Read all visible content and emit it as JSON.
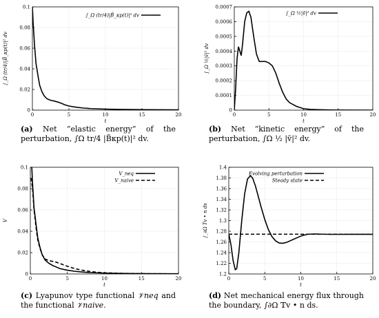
{
  "chart_data": [
    {
      "id": "a",
      "type": "line",
      "xlabel": "t",
      "ylabel": "∫_Ω (tr/4)|B̃_κp(t)|² dv",
      "xlim": [
        0,
        20
      ],
      "ylim": [
        0,
        0.1
      ],
      "xticks": [
        "0",
        "5",
        "10",
        "15",
        "20"
      ],
      "xtick_values": [
        0,
        5,
        10,
        15,
        20
      ],
      "yticks": [
        "0",
        "0.02",
        "0.04",
        "0.06",
        "0.08",
        "0.1"
      ],
      "ytick_values": [
        0,
        0.02,
        0.04,
        0.06,
        0.08,
        0.1
      ],
      "grid": true,
      "legend_position": "top-right",
      "series": [
        {
          "name": "∫_Ω (tr/4)|B̃_κp(t)|² dv",
          "style": "solid",
          "x": [
            0,
            0.1,
            0.3,
            0.5,
            0.8,
            1.0,
            1.3,
            1.6,
            2.0,
            2.5,
            3.0,
            3.5,
            4.0,
            4.5,
            5.0,
            6.0,
            7.0,
            8.0,
            10.0,
            12.0,
            15.0,
            20.0
          ],
          "y": [
            0.1,
            0.085,
            0.062,
            0.045,
            0.032,
            0.024,
            0.018,
            0.014,
            0.011,
            0.0095,
            0.0088,
            0.0078,
            0.0065,
            0.005,
            0.004,
            0.0028,
            0.002,
            0.0015,
            0.001,
            0.0007,
            0.0005,
            0.0003
          ]
        }
      ]
    },
    {
      "id": "b",
      "type": "line",
      "xlabel": "t",
      "ylabel": "∫_Ω ½|v̄|² dv",
      "xlim": [
        0,
        20
      ],
      "ylim": [
        0,
        0.0007
      ],
      "xticks": [
        "0",
        "5",
        "10",
        "15",
        "20"
      ],
      "xtick_values": [
        0,
        5,
        10,
        15,
        20
      ],
      "yticks": [
        "0",
        "0.0001",
        "0.0002",
        "0.0003",
        "0.0004",
        "0.0005",
        "0.0006",
        "0.0007"
      ],
      "ytick_values": [
        0,
        0.0001,
        0.0002,
        0.0003,
        0.0004,
        0.0005,
        0.0006,
        0.0007
      ],
      "grid": true,
      "legend_position": "top-right",
      "series": [
        {
          "name": "∫_Ω ½|v̄|² dv",
          "style": "solid",
          "x": [
            0,
            0.2,
            0.4,
            0.6,
            0.8,
            1.0,
            1.2,
            1.5,
            1.8,
            2.1,
            2.4,
            2.8,
            3.2,
            3.6,
            4.0,
            4.5,
            5.0,
            5.5,
            6.0,
            6.5,
            7.0,
            7.5,
            8.0,
            9.0,
            10.0,
            11.0,
            12.0,
            14.0,
            16.0,
            20.0
          ],
          "y": [
            0,
            0.00015,
            0.00035,
            0.00043,
            0.0004,
            0.00037,
            0.00045,
            0.0006,
            0.00066,
            0.00067,
            0.00063,
            0.0005,
            0.00038,
            0.00033,
            0.00033,
            0.00033,
            0.00032,
            0.0003,
            0.00025,
            0.00018,
            0.00012,
            7.5e-05,
            5e-05,
            2.5e-05,
            1e-05,
            5e-06,
            3e-06,
            1e-06,
            5e-07,
            0
          ]
        }
      ]
    },
    {
      "id": "c",
      "type": "line",
      "xlabel": "t",
      "ylabel": "V",
      "xlim": [
        0,
        20
      ],
      "ylim": [
        0,
        0.1
      ],
      "xticks": [
        "0",
        "5",
        "10",
        "15",
        "20"
      ],
      "xtick_values": [
        0,
        5,
        10,
        15,
        20
      ],
      "yticks": [
        "0",
        "0.02",
        "0.04",
        "0.06",
        "0.08",
        "0.1"
      ],
      "ytick_values": [
        0,
        0.02,
        0.04,
        0.06,
        0.08,
        0.1
      ],
      "grid": true,
      "legend_position": "top-right",
      "series": [
        {
          "name": "V_neq",
          "style": "solid",
          "x": [
            0.2,
            0.3,
            0.5,
            0.8,
            1.0,
            1.3,
            1.6,
            2.0,
            2.5,
            3.0,
            3.5,
            4.0,
            5.0,
            6.0,
            7.0,
            8.0,
            10.0,
            12.0,
            15.0,
            20.0
          ],
          "y": [
            0.1,
            0.085,
            0.062,
            0.045,
            0.034,
            0.025,
            0.018,
            0.013,
            0.01,
            0.008,
            0.0065,
            0.005,
            0.0035,
            0.0025,
            0.0018,
            0.0013,
            0.0008,
            0.0005,
            0.0003,
            0.0002
          ]
        },
        {
          "name": "V_naive",
          "style": "dashed",
          "x": [
            0.1,
            0.3,
            0.5,
            0.8,
            1.0,
            1.3,
            1.6,
            2.0,
            2.5,
            3.0,
            3.5,
            4.0,
            4.5,
            5.0,
            6.0,
            7.0,
            8.0,
            9.0,
            10.0,
            12.0,
            15.0,
            20.0
          ],
          "y": [
            0.09,
            0.08,
            0.06,
            0.042,
            0.032,
            0.024,
            0.018,
            0.014,
            0.0125,
            0.0118,
            0.011,
            0.0098,
            0.0085,
            0.0072,
            0.005,
            0.0035,
            0.0024,
            0.0016,
            0.0011,
            0.0006,
            0.0003,
            0.0001
          ]
        }
      ]
    },
    {
      "id": "d",
      "type": "line",
      "xlabel": "t",
      "ylabel": "∫_∂Ω Tv • n ds",
      "xlim": [
        0,
        20
      ],
      "ylim": [
        1.2,
        1.4
      ],
      "xticks": [
        "0",
        "5",
        "10",
        "15",
        "20"
      ],
      "xtick_values": [
        0,
        5,
        10,
        15,
        20
      ],
      "yticks": [
        "1.2",
        "1.22",
        "1.24",
        "1.26",
        "1.28",
        "1.3",
        "1.32",
        "1.34",
        "1.36",
        "1.38",
        "1.4"
      ],
      "ytick_values": [
        1.2,
        1.22,
        1.24,
        1.26,
        1.28,
        1.3,
        1.32,
        1.34,
        1.36,
        1.38,
        1.4
      ],
      "grid": true,
      "legend_position": "top-right",
      "series": [
        {
          "name": "Evolving perturbation",
          "style": "solid",
          "x": [
            0,
            0.3,
            0.6,
            0.9,
            1.1,
            1.4,
            1.8,
            2.2,
            2.6,
            3.0,
            3.3,
            3.7,
            4.1,
            4.5,
            5.0,
            5.5,
            6.0,
            6.5,
            7.0,
            7.5,
            8.0,
            8.5,
            9.0,
            9.5,
            10.0,
            10.5,
            11.0,
            12.0,
            13.0,
            14.0,
            15.0,
            17.0,
            20.0
          ],
          "y": [
            1.275,
            1.255,
            1.225,
            1.208,
            1.21,
            1.24,
            1.3,
            1.35,
            1.378,
            1.384,
            1.38,
            1.365,
            1.345,
            1.325,
            1.302,
            1.283,
            1.27,
            1.262,
            1.258,
            1.2575,
            1.259,
            1.262,
            1.265,
            1.268,
            1.271,
            1.273,
            1.2745,
            1.275,
            1.2745,
            1.2742,
            1.2742,
            1.2743,
            1.2743
          ]
        },
        {
          "name": "Steady state",
          "style": "dashed",
          "x": [
            0,
            20
          ],
          "y": [
            1.2745,
            1.2745
          ]
        }
      ]
    }
  ],
  "captions": {
    "a": {
      "label": "(a)",
      "pre": " Net “elastic energy” of the perturbation, ",
      "math": "∫_Ω (tr/4)|B̃_κp(t)|² dv.",
      "math_display": "∫Ω tr/4 |B̃κp(t)|² dv."
    },
    "b": {
      "label": "(b)",
      "pre": " Net “kinetic energy” of the perturbation, ",
      "math": "∫_Ω ½|v̄|² dv.",
      "math_display": "∫Ω ½ |v̄|² dv."
    },
    "c": {
      "label": "(c)",
      "pre": " Lyapunov type functional ",
      "v1": "V_neq",
      "v1_display": "𝒱neq",
      "mid": " and the functional ",
      "v2": "V_naive",
      "v2_display": "𝒱naive",
      "post": "."
    },
    "d": {
      "label": "(d)",
      "pre": " Net mechanical energy flux through the boundary, ",
      "math": "∫_∂Ω Tv • n ds.",
      "math_display": "∫∂Ω 𝕋v • n ds."
    }
  }
}
